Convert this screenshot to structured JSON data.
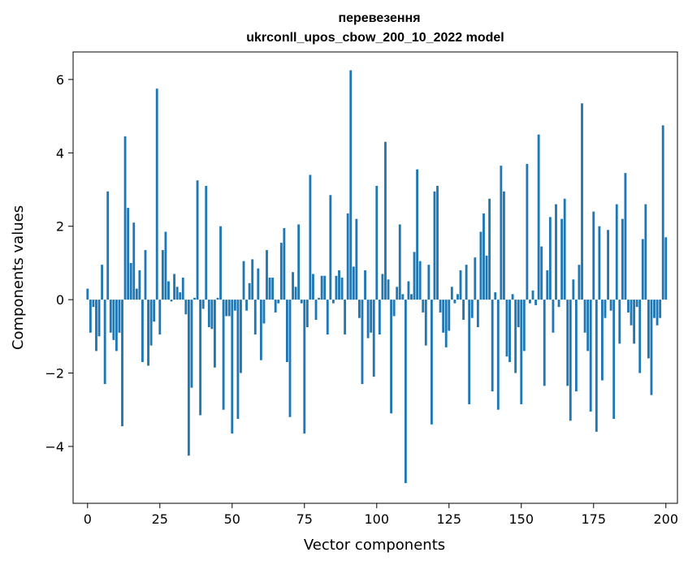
{
  "chart_data": {
    "type": "bar",
    "title": "перевезення",
    "subtitle": "ukrconll_upos_cbow_200_10_2022 model",
    "xlabel": "Vector components",
    "ylabel": "Components values",
    "xlim": [
      -5,
      204
    ],
    "ylim": [
      -5.55,
      6.75
    ],
    "xticks": [
      0,
      25,
      50,
      75,
      100,
      125,
      150,
      175,
      200
    ],
    "yticks": [
      -4,
      -2,
      0,
      2,
      4,
      6
    ],
    "ytick_labels": [
      "−4",
      "−2",
      "0",
      "2",
      "4",
      "6"
    ],
    "grid": false,
    "bar_color": "#1f77b4",
    "values": [
      0.3,
      -0.9,
      -0.2,
      -1.4,
      -1.0,
      0.95,
      -2.3,
      2.95,
      -0.9,
      -1.1,
      -1.4,
      -0.9,
      -3.45,
      4.45,
      2.5,
      1.0,
      2.1,
      0.3,
      0.8,
      -1.7,
      1.35,
      -1.8,
      -1.25,
      -0.6,
      5.75,
      -0.95,
      1.35,
      1.85,
      0.5,
      -0.05,
      0.7,
      0.35,
      0.2,
      0.6,
      -0.4,
      -4.25,
      -2.4,
      0.05,
      3.25,
      -3.15,
      -0.25,
      3.1,
      -0.75,
      -0.8,
      -1.85,
      0.05,
      2.0,
      -3.0,
      -0.45,
      -0.45,
      -3.65,
      -0.3,
      -3.25,
      -2.0,
      1.05,
      -0.3,
      0.45,
      1.1,
      -0.95,
      0.85,
      -1.65,
      -0.65,
      1.35,
      0.6,
      0.6,
      -0.35,
      -0.1,
      1.55,
      1.95,
      -1.7,
      -3.2,
      0.75,
      0.35,
      2.05,
      -0.1,
      -3.65,
      -0.75,
      3.4,
      0.7,
      -0.55,
      0.05,
      0.65,
      0.65,
      -0.95,
      2.85,
      -0.1,
      0.65,
      0.8,
      0.6,
      -0.95,
      2.35,
      6.25,
      0.9,
      2.2,
      -0.5,
      -2.3,
      0.8,
      -1.05,
      -0.9,
      -2.1,
      3.1,
      -0.95,
      0.7,
      4.3,
      0.55,
      -3.1,
      -0.45,
      0.35,
      2.05,
      0.15,
      -5.0,
      0.5,
      0.15,
      1.3,
      3.55,
      1.05,
      -0.35,
      -1.25,
      0.95,
      -3.4,
      2.95,
      3.1,
      -0.35,
      -0.9,
      -1.3,
      -0.85,
      0.35,
      -0.1,
      0.15,
      0.8,
      -0.55,
      0.95,
      -2.85,
      -0.5,
      1.15,
      -0.75,
      1.85,
      2.35,
      1.2,
      2.75,
      -2.5,
      0.2,
      -3.0,
      3.65,
      2.95,
      -1.55,
      -1.7,
      0.15,
      -2.0,
      -0.75,
      -2.85,
      -1.4,
      3.7,
      -0.1,
      0.25,
      -0.15,
      4.5,
      1.45,
      -2.35,
      0.8,
      2.25,
      -0.9,
      2.6,
      -0.2,
      2.2,
      2.75,
      -2.35,
      -3.3,
      0.55,
      -2.5,
      0.95,
      5.35,
      -0.9,
      -1.4,
      -3.05,
      2.4,
      -3.6,
      2.0,
      -2.2,
      -0.5,
      1.9,
      -0.3,
      -3.25,
      2.6,
      -1.2,
      2.2,
      3.45,
      -0.35,
      -0.7,
      -1.2,
      -0.2,
      -2.0,
      1.65,
      2.6,
      -1.6,
      -2.6,
      -0.5,
      -0.7,
      -0.5,
      4.75,
      1.7
    ]
  }
}
